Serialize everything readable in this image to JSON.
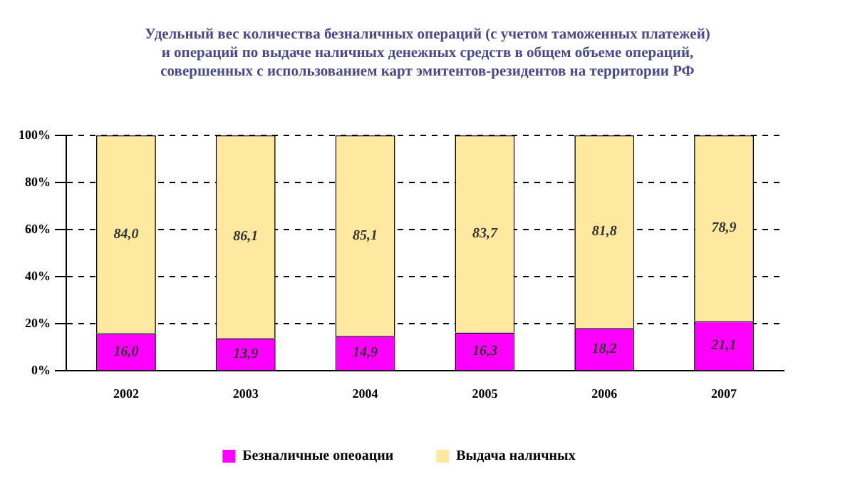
{
  "chart_data": {
    "type": "bar",
    "stacked": true,
    "title": "Удельный вес количества безналичных операций (с учетом таможенных платежей) и операций по выдаче наличных денежных средств в общем объеме операций, совершенных с использованием карт эмитентов-резидентов на территории РФ",
    "categories": [
      "2002",
      "2003",
      "2004",
      "2005",
      "2006",
      "2007"
    ],
    "series": [
      {
        "name": "Безналичные опеоации",
        "color": "#ff00ff",
        "values": [
          16.0,
          13.9,
          14.9,
          16.3,
          18.2,
          21.1
        ],
        "value_labels": [
          "16,0",
          "13,9",
          "14,9",
          "16,3",
          "18,2",
          "21,1"
        ]
      },
      {
        "name": "Выдача наличных",
        "color": "#ffe8a0",
        "values": [
          84.0,
          86.1,
          85.1,
          83.7,
          81.8,
          78.9
        ],
        "value_labels": [
          "84,0",
          "86,1",
          "85,1",
          "83,7",
          "81,8",
          "78,9"
        ]
      }
    ],
    "ylim": [
      0,
      100
    ],
    "yticks": [
      {
        "value": 0,
        "label": "0%"
      },
      {
        "value": 20,
        "label": "20%"
      },
      {
        "value": 40,
        "label": "40%"
      },
      {
        "value": 60,
        "label": "60%"
      },
      {
        "value": 80,
        "label": "80%"
      },
      {
        "value": 100,
        "label": "100%"
      }
    ],
    "grid": "y",
    "legend": "bottom"
  }
}
